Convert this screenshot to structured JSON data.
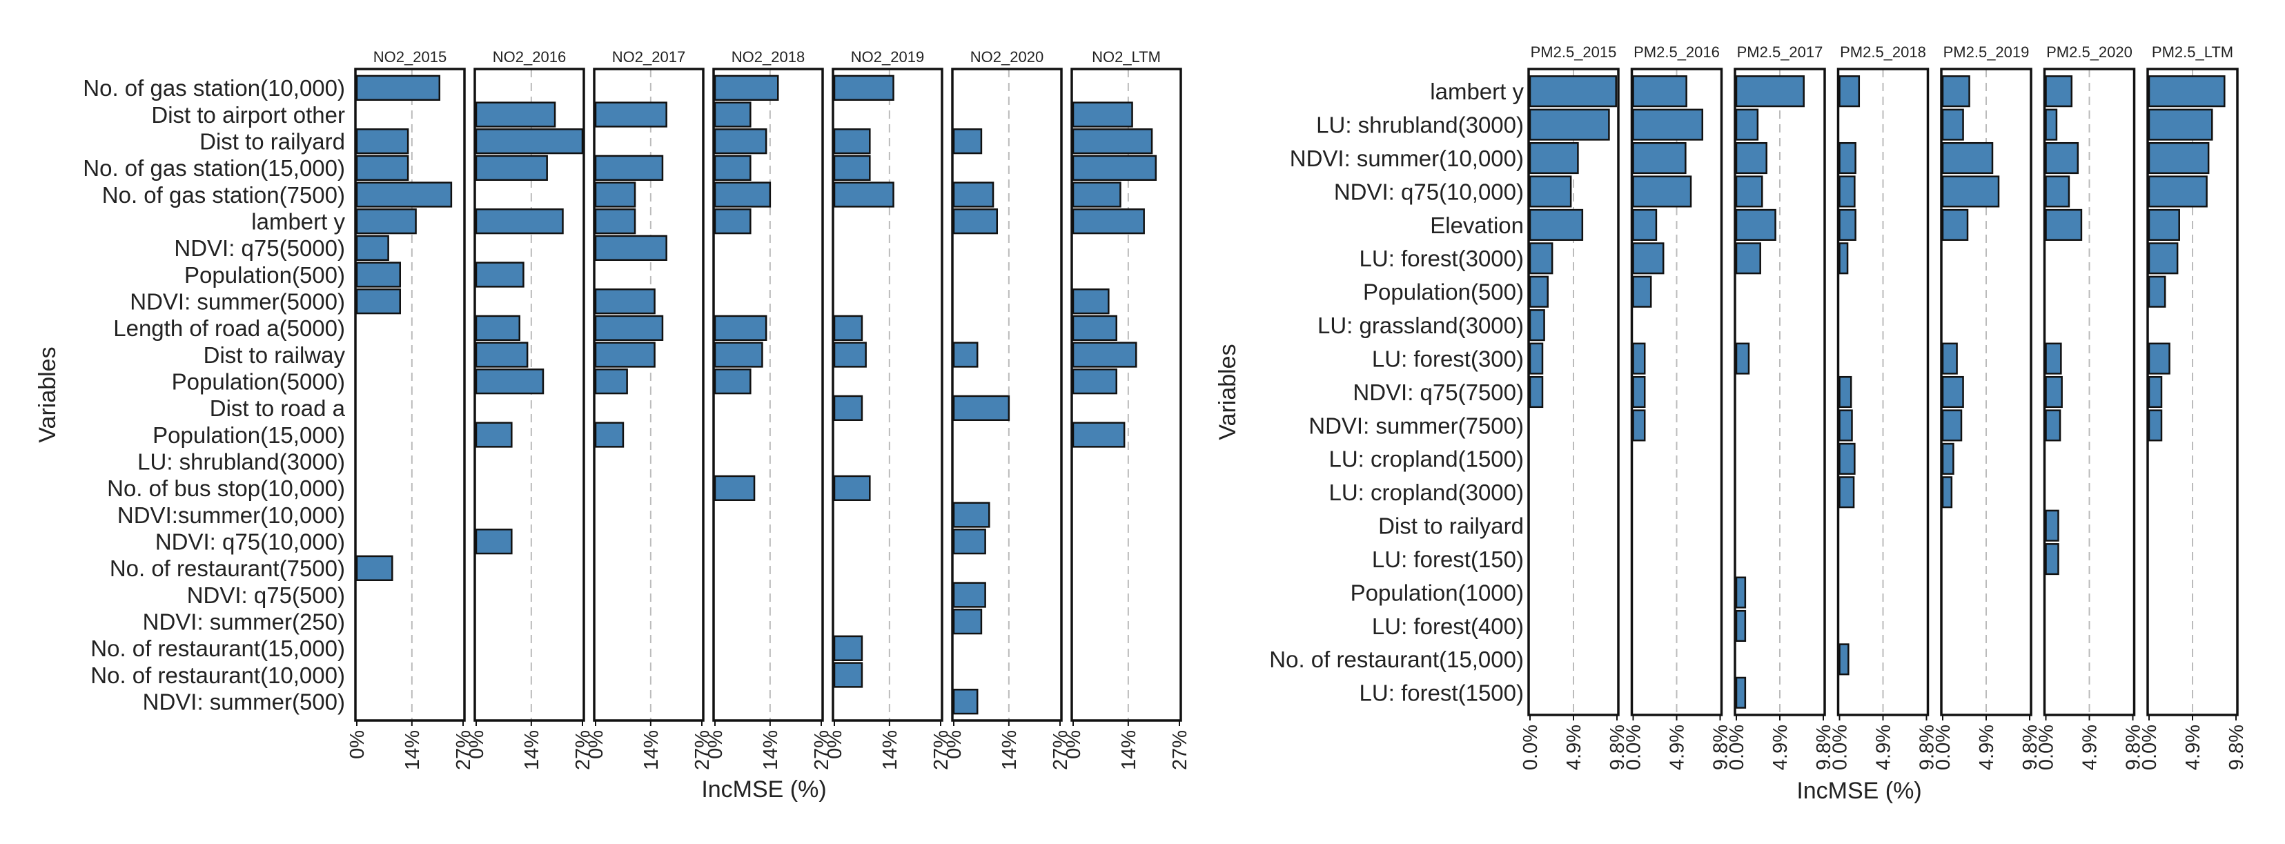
{
  "colors": {
    "bar": "#4682B4",
    "bar_stroke": "#111111",
    "grid": "#BBBBBB",
    "panel_border": "#111111",
    "text": "#222222"
  },
  "chart_data": [
    {
      "type": "bar",
      "orientation": "horizontal",
      "panel_layout": "faceted",
      "ylabel": "Variables",
      "xlabel": "IncMSE (%)",
      "xlim": [
        0,
        27
      ],
      "xticks": [
        0,
        14,
        27
      ],
      "xtick_labels": [
        "0%",
        "14%",
        "27%"
      ],
      "gridlines": [
        14
      ],
      "categories": [
        "No. of gas station(10,000)",
        "Dist to airport other",
        "Dist to railyard",
        "No. of gas station(15,000)",
        "No. of gas station(7500)",
        "lambert y",
        "NDVI: q75(5000)",
        "Population(500)",
        "NDVI: summer(5000)",
        "Length of road a(5000)",
        "Dist to railway",
        "Population(5000)",
        "Dist to road a",
        "Population(15,000)",
        "LU: shrubland(3000)",
        "No. of bus stop(10,000)",
        "NDVI:summer(10,000)",
        "NDVI: q75(10,000)",
        "No. of restaurant(7500)",
        "NDVI: q75(500)",
        "NDVI: summer(250)",
        "No. of restaurant(15,000)",
        "No. of restaurant(10,000)",
        "NDVI: summer(500)"
      ],
      "series": [
        {
          "name": "NO2_2015",
          "values": [
            21,
            null,
            13,
            13,
            24,
            15,
            8,
            11,
            11,
            null,
            null,
            null,
            null,
            null,
            null,
            null,
            null,
            null,
            9,
            null,
            null,
            null,
            null,
            null
          ]
        },
        {
          "name": "NO2_2016",
          "values": [
            null,
            20,
            27,
            18,
            null,
            22,
            null,
            12,
            null,
            11,
            13,
            17,
            null,
            9,
            null,
            null,
            null,
            9,
            null,
            null,
            null,
            null,
            null,
            null
          ]
        },
        {
          "name": "NO2_2017",
          "values": [
            null,
            18,
            null,
            17,
            10,
            10,
            18,
            null,
            15,
            17,
            15,
            8,
            null,
            7,
            null,
            null,
            null,
            null,
            null,
            null,
            null,
            null,
            null,
            null
          ]
        },
        {
          "name": "NO2_2018",
          "values": [
            16,
            9,
            13,
            9,
            14,
            9,
            null,
            null,
            null,
            13,
            12,
            9,
            null,
            null,
            null,
            10,
            null,
            null,
            null,
            null,
            null,
            null,
            null,
            null
          ]
        },
        {
          "name": "NO2_2019",
          "values": [
            15,
            null,
            9,
            9,
            15,
            null,
            null,
            null,
            null,
            7,
            8,
            null,
            7,
            null,
            null,
            9,
            null,
            null,
            null,
            null,
            null,
            7,
            7,
            null
          ]
        },
        {
          "name": "NO2_2020",
          "values": [
            null,
            null,
            7,
            null,
            10,
            11,
            null,
            null,
            null,
            null,
            6,
            null,
            14,
            null,
            null,
            null,
            9,
            8,
            null,
            8,
            7,
            null,
            null,
            6
          ]
        },
        {
          "name": "NO2_LTM",
          "values": [
            null,
            15,
            20,
            21,
            12,
            18,
            null,
            null,
            9,
            11,
            16,
            11,
            null,
            13,
            null,
            null,
            null,
            null,
            null,
            null,
            null,
            null,
            null,
            null
          ]
        }
      ]
    },
    {
      "type": "bar",
      "orientation": "horizontal",
      "panel_layout": "faceted",
      "ylabel": "Variables",
      "xlabel": "IncMSE (%)",
      "xlim": [
        0,
        9.8
      ],
      "xticks": [
        0,
        4.9,
        9.8
      ],
      "xtick_labels": [
        "0.0%",
        "4.9%",
        "9.8%"
      ],
      "gridlines": [
        4.9
      ],
      "categories": [
        "lambert y",
        "LU: shrubland(3000)",
        "NDVI: summer(10,000)",
        "NDVI: q75(10,000)",
        "Elevation",
        "LU: forest(3000)",
        "Population(500)",
        "LU: grassland(3000)",
        "LU: forest(300)",
        "NDVI: q75(7500)",
        "NDVI: summer(7500)",
        "LU: cropland(1500)",
        "LU: cropland(3000)",
        "Dist to railyard",
        "LU: forest(150)",
        "Population(1000)",
        "LU: forest(400)",
        "No. of restaurant(15,000)",
        "LU: forest(1500)"
      ],
      "series": [
        {
          "name": "PM2.5_2015",
          "values": [
            9.7,
            8.9,
            5.4,
            4.6,
            5.9,
            2.5,
            2.0,
            1.6,
            1.4,
            1.4,
            null,
            null,
            null,
            null,
            null,
            null,
            null,
            null,
            null
          ]
        },
        {
          "name": "PM2.5_2016",
          "values": [
            6.0,
            7.8,
            5.9,
            6.5,
            2.6,
            3.4,
            2.0,
            null,
            1.3,
            1.3,
            1.3,
            null,
            null,
            null,
            null,
            null,
            null,
            null,
            null
          ]
        },
        {
          "name": "PM2.5_2017",
          "values": [
            7.6,
            2.4,
            3.4,
            2.9,
            4.4,
            2.7,
            null,
            null,
            1.4,
            null,
            null,
            null,
            null,
            null,
            null,
            1.0,
            1.0,
            null,
            1.0
          ]
        },
        {
          "name": "PM2.5_2018",
          "values": [
            2.2,
            null,
            1.8,
            1.7,
            1.8,
            0.9,
            null,
            null,
            null,
            1.3,
            1.4,
            1.7,
            1.6,
            null,
            null,
            null,
            null,
            1.0,
            null
          ]
        },
        {
          "name": "PM2.5_2019",
          "values": [
            3.0,
            2.3,
            5.6,
            6.3,
            2.8,
            null,
            null,
            null,
            1.6,
            2.3,
            2.1,
            1.2,
            1.0,
            null,
            null,
            null,
            null,
            null,
            null
          ]
        },
        {
          "name": "PM2.5_2020",
          "values": [
            2.9,
            1.2,
            3.6,
            2.6,
            4.0,
            null,
            null,
            null,
            1.7,
            1.8,
            1.6,
            null,
            null,
            1.4,
            1.4,
            null,
            null,
            null,
            null
          ]
        },
        {
          "name": "PM2.5_LTM",
          "values": [
            8.5,
            7.1,
            6.7,
            6.5,
            3.4,
            3.2,
            1.8,
            null,
            2.3,
            1.4,
            1.4,
            null,
            null,
            null,
            null,
            null,
            null,
            null,
            null
          ]
        }
      ]
    }
  ]
}
